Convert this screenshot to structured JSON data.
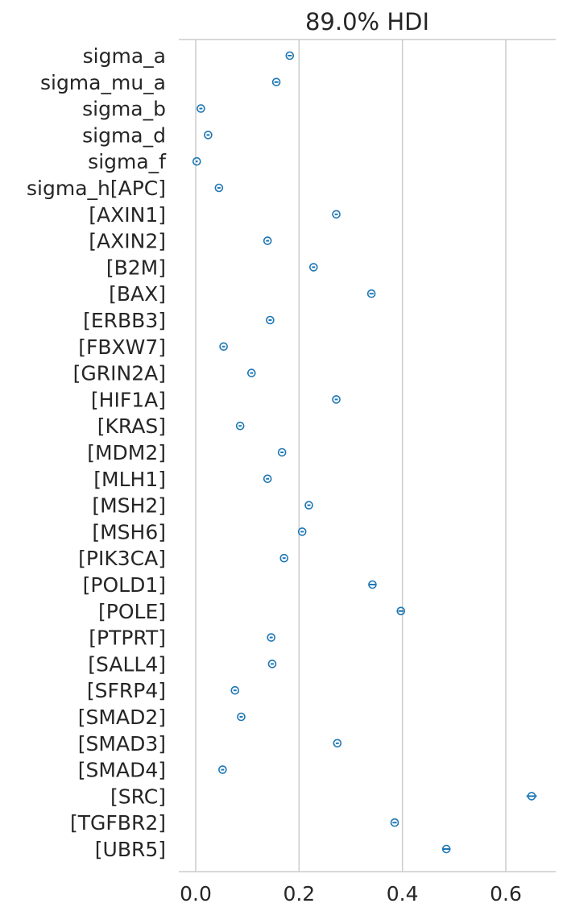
{
  "chart_data": {
    "type": "forest",
    "title": "89.0% HDI",
    "xlabel": "",
    "ylabel": "",
    "xlim": [
      -0.03,
      0.7
    ],
    "xticks": [
      0.0,
      0.2,
      0.4,
      0.6
    ],
    "xtick_labels": [
      "0.0",
      "0.2",
      "0.4",
      "0.6"
    ],
    "grid": "vertical",
    "marker_color": "#1f77b4",
    "rows": [
      {
        "label": "sigma_a",
        "mean": 0.182,
        "hdi_low": 0.178,
        "hdi_high": 0.186
      },
      {
        "label": "sigma_mu_a",
        "mean": 0.156,
        "hdi_low": 0.152,
        "hdi_high": 0.16
      },
      {
        "label": "sigma_b",
        "mean": 0.01,
        "hdi_low": 0.007,
        "hdi_high": 0.013
      },
      {
        "label": "sigma_d",
        "mean": 0.024,
        "hdi_low": 0.021,
        "hdi_high": 0.027
      },
      {
        "label": "sigma_f",
        "mean": 0.002,
        "hdi_low": 0.0,
        "hdi_high": 0.004
      },
      {
        "label": "sigma_h[APC]",
        "mean": 0.045,
        "hdi_low": 0.042,
        "hdi_high": 0.048
      },
      {
        "label": "[AXIN1]",
        "mean": 0.272,
        "hdi_low": 0.269,
        "hdi_high": 0.275
      },
      {
        "label": "[AXIN2]",
        "mean": 0.139,
        "hdi_low": 0.136,
        "hdi_high": 0.142
      },
      {
        "label": "[B2M]",
        "mean": 0.228,
        "hdi_low": 0.225,
        "hdi_high": 0.231
      },
      {
        "label": "[BAX]",
        "mean": 0.34,
        "hdi_low": 0.336,
        "hdi_high": 0.344
      },
      {
        "label": "[ERBB3]",
        "mean": 0.144,
        "hdi_low": 0.141,
        "hdi_high": 0.147
      },
      {
        "label": "[FBXW7]",
        "mean": 0.054,
        "hdi_low": 0.051,
        "hdi_high": 0.057
      },
      {
        "label": "[GRIN2A]",
        "mean": 0.108,
        "hdi_low": 0.105,
        "hdi_high": 0.111
      },
      {
        "label": "[HIF1A]",
        "mean": 0.272,
        "hdi_low": 0.269,
        "hdi_high": 0.275
      },
      {
        "label": "[KRAS]",
        "mean": 0.086,
        "hdi_low": 0.083,
        "hdi_high": 0.089
      },
      {
        "label": "[MDM2]",
        "mean": 0.167,
        "hdi_low": 0.164,
        "hdi_high": 0.17
      },
      {
        "label": "[MLH1]",
        "mean": 0.139,
        "hdi_low": 0.136,
        "hdi_high": 0.142
      },
      {
        "label": "[MSH2]",
        "mean": 0.219,
        "hdi_low": 0.216,
        "hdi_high": 0.222
      },
      {
        "label": "[MSH6]",
        "mean": 0.206,
        "hdi_low": 0.203,
        "hdi_high": 0.209
      },
      {
        "label": "[PIK3CA]",
        "mean": 0.171,
        "hdi_low": 0.168,
        "hdi_high": 0.174
      },
      {
        "label": "[POLD1]",
        "mean": 0.342,
        "hdi_low": 0.336,
        "hdi_high": 0.348
      },
      {
        "label": "[POLE]",
        "mean": 0.397,
        "hdi_low": 0.392,
        "hdi_high": 0.402
      },
      {
        "label": "[PTPRT]",
        "mean": 0.146,
        "hdi_low": 0.143,
        "hdi_high": 0.149
      },
      {
        "label": "[SALL4]",
        "mean": 0.148,
        "hdi_low": 0.145,
        "hdi_high": 0.151
      },
      {
        "label": "[SFRP4]",
        "mean": 0.076,
        "hdi_low": 0.073,
        "hdi_high": 0.079
      },
      {
        "label": "[SMAD2]",
        "mean": 0.088,
        "hdi_low": 0.085,
        "hdi_high": 0.091
      },
      {
        "label": "[SMAD3]",
        "mean": 0.274,
        "hdi_low": 0.271,
        "hdi_high": 0.277
      },
      {
        "label": "[SMAD4]",
        "mean": 0.052,
        "hdi_low": 0.049,
        "hdi_high": 0.055
      },
      {
        "label": "[SRC]",
        "mean": 0.65,
        "hdi_low": 0.64,
        "hdi_high": 0.66
      },
      {
        "label": "[TGFBR2]",
        "mean": 0.385,
        "hdi_low": 0.381,
        "hdi_high": 0.389
      },
      {
        "label": "[UBR5]",
        "mean": 0.485,
        "hdi_low": 0.477,
        "hdi_high": 0.493
      }
    ]
  }
}
